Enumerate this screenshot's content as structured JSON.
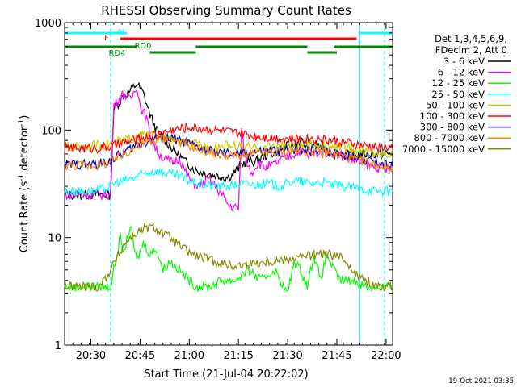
{
  "chart_data": {
    "type": "line",
    "title": "RHESSI Observing Summary Count Rates",
    "xlabel": "Start Time (21-Jul-04 20:22:02)",
    "ylabel_main": "Count Rate (s",
    "ylabel_sup1": "-1",
    "ylabel_mid": " detector",
    "ylabel_sup2": "-1",
    "ylabel_end": ")",
    "yscale": "log",
    "ylim": [
      1,
      1000
    ],
    "xlim_minutes": [
      0,
      100
    ],
    "x_tick_labels": [
      "20:30",
      "20:45",
      "21:00",
      "21:15",
      "21:30",
      "21:45",
      "22:00"
    ],
    "x_tick_minutes": [
      8,
      23,
      38,
      53,
      68,
      83,
      98
    ],
    "y_tick_labels": [
      "1",
      "10",
      "100",
      "1000"
    ],
    "y_tick_values": [
      1,
      10,
      100,
      1000
    ],
    "legend_header": [
      "Det 1,3,4,5,6,9,",
      "FDecim 2, Att 0"
    ],
    "series": [
      {
        "name": "3 - 6 keV",
        "color": "#000000",
        "points": [
          [
            0,
            25
          ],
          [
            14,
            25
          ],
          [
            15,
            155
          ],
          [
            18,
            210
          ],
          [
            20,
            230
          ],
          [
            22,
            270
          ],
          [
            24,
            220
          ],
          [
            26,
            140
          ],
          [
            28,
            100
          ],
          [
            31,
            78
          ],
          [
            34,
            62
          ],
          [
            37,
            50
          ],
          [
            40,
            42
          ],
          [
            43,
            40
          ],
          [
            46,
            38
          ],
          [
            49,
            36
          ],
          [
            51,
            38
          ],
          [
            54,
            48
          ],
          [
            56,
            52
          ],
          [
            58,
            50
          ],
          [
            61,
            58
          ],
          [
            64,
            62
          ],
          [
            67,
            70
          ],
          [
            70,
            72
          ],
          [
            72,
            80
          ],
          [
            74,
            68
          ],
          [
            76,
            75
          ],
          [
            78,
            70
          ],
          [
            80,
            65
          ],
          [
            82,
            60
          ],
          [
            84,
            60
          ],
          [
            87,
            58
          ],
          [
            90,
            60
          ],
          [
            94,
            60
          ],
          [
            100,
            60
          ]
        ]
      },
      {
        "name": "6 - 12 keV",
        "color": "#ff00ff",
        "points": [
          [
            0,
            25
          ],
          [
            14,
            25
          ],
          [
            15,
            170
          ],
          [
            18,
            220
          ],
          [
            20,
            190
          ],
          [
            22,
            260
          ],
          [
            23,
            170
          ],
          [
            25,
            130
          ],
          [
            26,
            90
          ],
          [
            28,
            65
          ],
          [
            30,
            55
          ],
          [
            33,
            50
          ],
          [
            35,
            55
          ],
          [
            37,
            40
          ],
          [
            39,
            32
          ],
          [
            41,
            30
          ],
          [
            44,
            35
          ],
          [
            46,
            30
          ],
          [
            48,
            25
          ],
          [
            50,
            20
          ],
          [
            52,
            19
          ],
          [
            53,
            19
          ],
          [
            54,
            100
          ],
          [
            55,
            55
          ],
          [
            57,
            40
          ],
          [
            59,
            50
          ],
          [
            61,
            45
          ],
          [
            64,
            48
          ],
          [
            67,
            55
          ],
          [
            70,
            60
          ],
          [
            72,
            65
          ],
          [
            74,
            58
          ],
          [
            76,
            60
          ],
          [
            78,
            62
          ],
          [
            80,
            62
          ],
          [
            82,
            62
          ],
          [
            84,
            60
          ],
          [
            86,
            55
          ],
          [
            90,
            50
          ],
          [
            95,
            45
          ],
          [
            100,
            42
          ]
        ]
      },
      {
        "name": "12 - 25 keV",
        "color": "#00ff00",
        "points": [
          [
            0,
            3.5
          ],
          [
            14,
            3.5
          ],
          [
            15,
            5
          ],
          [
            17,
            10
          ],
          [
            18,
            7
          ],
          [
            20,
            13
          ],
          [
            22,
            6
          ],
          [
            24,
            9
          ],
          [
            26,
            7
          ],
          [
            28,
            8
          ],
          [
            30,
            5
          ],
          [
            32,
            6
          ],
          [
            35,
            5
          ],
          [
            38,
            4
          ],
          [
            40,
            3.5
          ],
          [
            44,
            3.5
          ],
          [
            48,
            4
          ],
          [
            52,
            4
          ],
          [
            56,
            5
          ],
          [
            60,
            4
          ],
          [
            64,
            5
          ],
          [
            68,
            3
          ],
          [
            70,
            6
          ],
          [
            72,
            5
          ],
          [
            74,
            3.5
          ],
          [
            76,
            7
          ],
          [
            78,
            4
          ],
          [
            80,
            7
          ],
          [
            82,
            5
          ],
          [
            84,
            4
          ],
          [
            88,
            4
          ],
          [
            92,
            3.5
          ],
          [
            96,
            3.5
          ],
          [
            100,
            3.5
          ]
        ]
      },
      {
        "name": "25 - 50 keV",
        "color": "#00ffff",
        "points": [
          [
            0,
            27
          ],
          [
            10,
            27
          ],
          [
            14,
            30
          ],
          [
            15,
            32
          ],
          [
            20,
            35
          ],
          [
            22,
            37
          ],
          [
            25,
            40
          ],
          [
            28,
            42
          ],
          [
            31,
            40
          ],
          [
            34,
            38
          ],
          [
            37,
            35
          ],
          [
            40,
            32
          ],
          [
            43,
            31
          ],
          [
            46,
            30
          ],
          [
            50,
            30
          ],
          [
            54,
            32
          ],
          [
            58,
            31
          ],
          [
            62,
            32
          ],
          [
            66,
            30
          ],
          [
            70,
            34
          ],
          [
            72,
            33
          ],
          [
            75,
            32
          ],
          [
            78,
            33
          ],
          [
            80,
            32
          ],
          [
            82,
            31
          ],
          [
            84,
            30
          ],
          [
            88,
            29
          ],
          [
            92,
            28
          ],
          [
            96,
            27
          ],
          [
            100,
            27
          ]
        ]
      },
      {
        "name": "50 - 100 keV",
        "color": "#cccc00",
        "points": [
          [
            0,
            70
          ],
          [
            10,
            72
          ],
          [
            14,
            74
          ],
          [
            18,
            80
          ],
          [
            22,
            88
          ],
          [
            26,
            92
          ],
          [
            30,
            85
          ],
          [
            34,
            80
          ],
          [
            38,
            75
          ],
          [
            42,
            72
          ],
          [
            46,
            70
          ],
          [
            50,
            72
          ],
          [
            54,
            70
          ],
          [
            58,
            68
          ],
          [
            62,
            70
          ],
          [
            66,
            72
          ],
          [
            70,
            70
          ],
          [
            74,
            74
          ],
          [
            78,
            72
          ],
          [
            82,
            70
          ],
          [
            86,
            68
          ],
          [
            90,
            65
          ],
          [
            94,
            62
          ],
          [
            100,
            60
          ]
        ]
      },
      {
        "name": "100 - 300 keV",
        "color": "#ff0000",
        "points": [
          [
            0,
            68
          ],
          [
            10,
            68
          ],
          [
            14,
            70
          ],
          [
            18,
            76
          ],
          [
            22,
            82
          ],
          [
            26,
            88
          ],
          [
            30,
            95
          ],
          [
            34,
            102
          ],
          [
            38,
            106
          ],
          [
            42,
            104
          ],
          [
            46,
            100
          ],
          [
            50,
            96
          ],
          [
            54,
            92
          ],
          [
            58,
            88
          ],
          [
            62,
            86
          ],
          [
            66,
            84
          ],
          [
            70,
            82
          ],
          [
            74,
            84
          ],
          [
            78,
            82
          ],
          [
            82,
            80
          ],
          [
            86,
            76
          ],
          [
            90,
            72
          ],
          [
            94,
            70
          ],
          [
            100,
            68
          ]
        ]
      },
      {
        "name": "300 - 800 keV",
        "color": "#0000cc",
        "points": [
          [
            0,
            48
          ],
          [
            10,
            48
          ],
          [
            14,
            52
          ],
          [
            18,
            62
          ],
          [
            22,
            72
          ],
          [
            26,
            80
          ],
          [
            30,
            86
          ],
          [
            34,
            82
          ],
          [
            38,
            74
          ],
          [
            42,
            66
          ],
          [
            46,
            62
          ],
          [
            50,
            60
          ],
          [
            54,
            60
          ],
          [
            58,
            62
          ],
          [
            62,
            64
          ],
          [
            66,
            64
          ],
          [
            70,
            66
          ],
          [
            74,
            66
          ],
          [
            78,
            64
          ],
          [
            82,
            62
          ],
          [
            86,
            58
          ],
          [
            90,
            54
          ],
          [
            94,
            50
          ],
          [
            100,
            46
          ]
        ]
      },
      {
        "name": "800 - 7000 keV",
        "color": "#ff8800",
        "points": [
          [
            0,
            47
          ],
          [
            10,
            47
          ],
          [
            14,
            50
          ],
          [
            18,
            60
          ],
          [
            22,
            70
          ],
          [
            26,
            78
          ],
          [
            30,
            84
          ],
          [
            34,
            80
          ],
          [
            38,
            72
          ],
          [
            42,
            65
          ],
          [
            46,
            60
          ],
          [
            50,
            58
          ],
          [
            54,
            58
          ],
          [
            58,
            60
          ],
          [
            62,
            62
          ],
          [
            66,
            62
          ],
          [
            70,
            64
          ],
          [
            74,
            64
          ],
          [
            78,
            62
          ],
          [
            82,
            60
          ],
          [
            86,
            56
          ],
          [
            90,
            52
          ],
          [
            94,
            48
          ],
          [
            100,
            45
          ]
        ]
      },
      {
        "name": "7000 - 15000 keV",
        "color": "#888800",
        "points": [
          [
            0,
            3.5
          ],
          [
            10,
            3.5
          ],
          [
            12,
            4
          ],
          [
            14,
            5
          ],
          [
            16,
            6.5
          ],
          [
            18,
            8.5
          ],
          [
            20,
            10
          ],
          [
            22,
            11
          ],
          [
            24,
            12
          ],
          [
            26,
            12.5
          ],
          [
            28,
            12
          ],
          [
            30,
            11
          ],
          [
            33,
            9.5
          ],
          [
            36,
            8
          ],
          [
            39,
            7
          ],
          [
            42,
            6.5
          ],
          [
            46,
            6
          ],
          [
            50,
            5.5
          ],
          [
            54,
            5.5
          ],
          [
            58,
            5.8
          ],
          [
            62,
            6
          ],
          [
            66,
            6.2
          ],
          [
            70,
            6.5
          ],
          [
            74,
            6.8
          ],
          [
            78,
            7
          ],
          [
            80,
            7
          ],
          [
            82,
            6.8
          ],
          [
            84,
            6.5
          ],
          [
            86,
            6
          ],
          [
            88,
            5
          ],
          [
            90,
            4.2
          ],
          [
            93,
            3.8
          ],
          [
            96,
            3.5
          ],
          [
            100,
            3.5
          ]
        ]
      }
    ],
    "flag_bars": [
      {
        "label": "N",
        "color": "#00ffff",
        "segments": [
          [
            0,
            19
          ],
          [
            90,
            100
          ]
        ]
      },
      {
        "label": "F",
        "color": "#ff0000",
        "segments": [
          [
            17,
            89
          ]
        ]
      },
      {
        "label": "RD0",
        "color": "#008800",
        "segments": [
          [
            0,
            22
          ],
          [
            40,
            74
          ],
          [
            82,
            100
          ]
        ]
      },
      {
        "label": "RD4",
        "color": "#008800",
        "segments": [
          [
            26,
            40
          ],
          [
            74,
            83
          ]
        ]
      }
    ],
    "vertical_markers": [
      {
        "x": 14,
        "color": "#00ffff",
        "style": "dashed"
      },
      {
        "x": 90,
        "color": "#00ffff",
        "style": "solid"
      },
      {
        "x": 97.5,
        "color": "#00ffff",
        "style": "dashed"
      }
    ],
    "timestamp": "19-Oct-2021 03:35"
  }
}
